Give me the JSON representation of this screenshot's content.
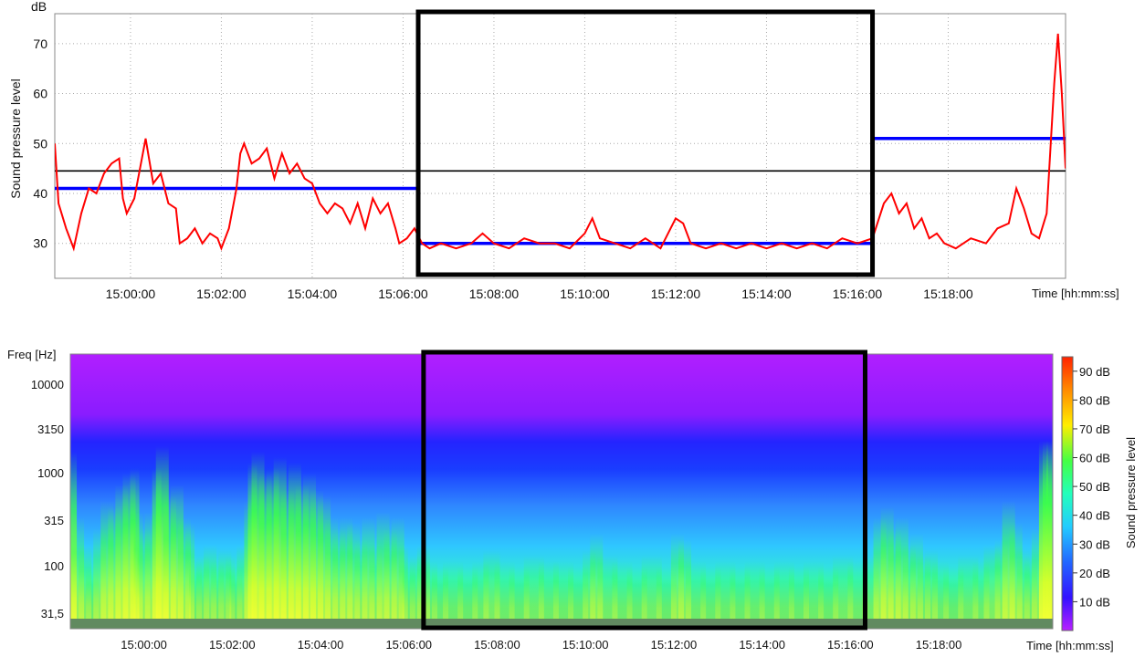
{
  "chart_data": [
    {
      "type": "line",
      "unit_label": "dB",
      "ylabel": "Sound pressure level",
      "xlabel": "Time [hh:mm:ss]",
      "ylim": [
        23,
        76
      ],
      "yticks": [
        30,
        40,
        50,
        60,
        70
      ],
      "x_start": "14:58:20",
      "x_end": "15:20:35",
      "xticks": [
        "15:00:00",
        "15:02:00",
        "15:04:00",
        "15:06:00",
        "15:08:00",
        "15:10:00",
        "15:12:00",
        "15:14:00",
        "15:16:00",
        "15:18:00"
      ],
      "grid": true,
      "highlight": {
        "start": "15:06:20",
        "end": "15:16:20",
        "color": "#000000"
      },
      "series": [
        {
          "role": "measured level",
          "color": "#ff0000",
          "points": [
            [
              "14:58:20",
              50
            ],
            [
              "14:58:25",
              38
            ],
            [
              "14:58:35",
              33
            ],
            [
              "14:58:45",
              29
            ],
            [
              "14:58:55",
              36
            ],
            [
              "14:59:05",
              41
            ],
            [
              "14:59:15",
              40
            ],
            [
              "14:59:25",
              44
            ],
            [
              "14:59:35",
              46
            ],
            [
              "14:59:45",
              47
            ],
            [
              "14:59:50",
              39
            ],
            [
              "14:59:55",
              36
            ],
            [
              "15:00:05",
              39
            ],
            [
              "15:00:15",
              47
            ],
            [
              "15:00:20",
              51
            ],
            [
              "15:00:30",
              42
            ],
            [
              "15:00:40",
              44
            ],
            [
              "15:00:50",
              38
            ],
            [
              "15:01:00",
              37
            ],
            [
              "15:01:05",
              30
            ],
            [
              "15:01:15",
              31
            ],
            [
              "15:01:25",
              33
            ],
            [
              "15:01:35",
              30
            ],
            [
              "15:01:45",
              32
            ],
            [
              "15:01:55",
              31
            ],
            [
              "15:02:00",
              29
            ],
            [
              "15:02:10",
              33
            ],
            [
              "15:02:20",
              41
            ],
            [
              "15:02:25",
              48
            ],
            [
              "15:02:30",
              50
            ],
            [
              "15:02:40",
              46
            ],
            [
              "15:02:50",
              47
            ],
            [
              "15:03:00",
              49
            ],
            [
              "15:03:10",
              43
            ],
            [
              "15:03:20",
              48
            ],
            [
              "15:03:30",
              44
            ],
            [
              "15:03:40",
              46
            ],
            [
              "15:03:50",
              43
            ],
            [
              "15:04:00",
              42
            ],
            [
              "15:04:10",
              38
            ],
            [
              "15:04:20",
              36
            ],
            [
              "15:04:30",
              38
            ],
            [
              "15:04:40",
              37
            ],
            [
              "15:04:50",
              34
            ],
            [
              "15:05:00",
              38
            ],
            [
              "15:05:10",
              33
            ],
            [
              "15:05:20",
              39
            ],
            [
              "15:05:30",
              36
            ],
            [
              "15:05:40",
              38
            ],
            [
              "15:05:50",
              33
            ],
            [
              "15:05:55",
              30
            ],
            [
              "15:06:05",
              31
            ],
            [
              "15:06:15",
              33
            ],
            [
              "15:06:25",
              30
            ],
            [
              "15:06:35",
              29
            ],
            [
              "15:06:50",
              30
            ],
            [
              "15:07:10",
              29
            ],
            [
              "15:07:30",
              30
            ],
            [
              "15:07:45",
              32
            ],
            [
              "15:08:00",
              30
            ],
            [
              "15:08:20",
              29
            ],
            [
              "15:08:40",
              31
            ],
            [
              "15:09:00",
              30
            ],
            [
              "15:09:20",
              30
            ],
            [
              "15:09:40",
              29
            ],
            [
              "15:10:00",
              32
            ],
            [
              "15:10:10",
              35
            ],
            [
              "15:10:20",
              31
            ],
            [
              "15:10:40",
              30
            ],
            [
              "15:11:00",
              29
            ],
            [
              "15:11:20",
              31
            ],
            [
              "15:11:40",
              29
            ],
            [
              "15:12:00",
              35
            ],
            [
              "15:12:10",
              34
            ],
            [
              "15:12:20",
              30
            ],
            [
              "15:12:40",
              29
            ],
            [
              "15:13:00",
              30
            ],
            [
              "15:13:20",
              29
            ],
            [
              "15:13:40",
              30
            ],
            [
              "15:14:00",
              29
            ],
            [
              "15:14:20",
              30
            ],
            [
              "15:14:40",
              29
            ],
            [
              "15:15:00",
              30
            ],
            [
              "15:15:20",
              29
            ],
            [
              "15:15:40",
              31
            ],
            [
              "15:16:00",
              30
            ],
            [
              "15:16:20",
              31
            ],
            [
              "15:16:35",
              38
            ],
            [
              "15:16:45",
              40
            ],
            [
              "15:16:55",
              36
            ],
            [
              "15:17:05",
              38
            ],
            [
              "15:17:15",
              33
            ],
            [
              "15:17:25",
              35
            ],
            [
              "15:17:35",
              31
            ],
            [
              "15:17:45",
              32
            ],
            [
              "15:17:55",
              30
            ],
            [
              "15:18:10",
              29
            ],
            [
              "15:18:30",
              31
            ],
            [
              "15:18:50",
              30
            ],
            [
              "15:19:05",
              33
            ],
            [
              "15:19:20",
              34
            ],
            [
              "15:19:30",
              41
            ],
            [
              "15:19:40",
              37
            ],
            [
              "15:19:50",
              32
            ],
            [
              "15:20:00",
              31
            ],
            [
              "15:20:10",
              36
            ],
            [
              "15:20:20",
              62
            ],
            [
              "15:20:25",
              72
            ],
            [
              "15:20:30",
              60
            ],
            [
              "15:20:35",
              45
            ]
          ]
        },
        {
          "role": "overall average",
          "color": "#000000",
          "points": [
            [
              "14:58:20",
              44.5
            ],
            [
              "15:20:35",
              44.5
            ]
          ]
        },
        {
          "role": "period average",
          "color": "#0000ff",
          "segments": [
            {
              "start": "14:58:20",
              "end": "15:06:20",
              "value": 41
            },
            {
              "start": "15:06:20",
              "end": "15:16:20",
              "value": 30
            },
            {
              "start": "15:16:20",
              "end": "15:20:35",
              "value": 51
            }
          ]
        }
      ]
    },
    {
      "type": "heatmap",
      "ylabel": "Freq [Hz]",
      "xlabel": "Time [hh:mm:ss]",
      "colorbar_label": "Sound pressure level",
      "yticks": [
        "10000",
        "3150",
        "1000",
        "315",
        "100",
        "31,5"
      ],
      "xticks": [
        "15:00:00",
        "15:02:00",
        "15:04:00",
        "15:06:00",
        "15:08:00",
        "15:10:00",
        "15:12:00",
        "15:14:00",
        "15:16:00",
        "15:18:00"
      ],
      "colorbar_ticks": [
        "90 dB",
        "80 dB",
        "70 dB",
        "60 dB",
        "50 dB",
        "40 dB",
        "30 dB",
        "20 dB",
        "10 dB"
      ],
      "colorbar_range": [
        0,
        95
      ],
      "highlight": {
        "start": "15:06:20",
        "end": "15:16:20",
        "color": "#000000"
      }
    }
  ]
}
